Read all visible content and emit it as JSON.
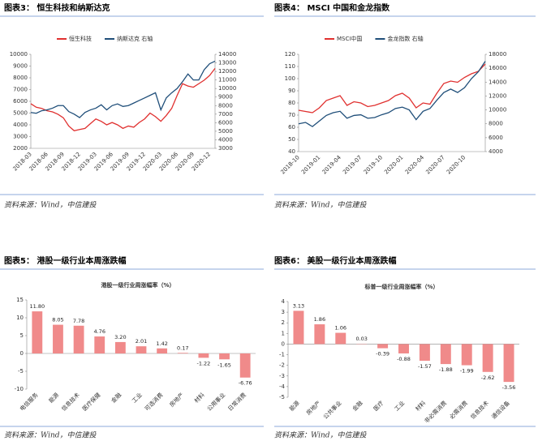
{
  "chart_data": [
    {
      "type": "line",
      "title": "图表3： 恒生科技和纳斯达克",
      "source": "资料来源：Wind，中信建投",
      "categories": [
        "2018-03",
        null,
        null,
        "2018-06",
        null,
        null,
        "2018-09",
        null,
        null,
        "2018-12",
        null,
        null,
        "2019-03",
        null,
        null,
        "2019-06",
        null,
        null,
        "2019-09",
        null,
        null,
        "2019-12",
        null,
        null,
        "2020-03",
        null,
        null,
        "2020-06",
        null,
        null,
        "2020-09",
        null,
        null,
        "2020-12",
        null
      ],
      "series": [
        {
          "name": "恒生科技",
          "color": "#e0302f",
          "values": [
            5800,
            5500,
            5400,
            5200,
            5100,
            4900,
            4600,
            3900,
            3500,
            3600,
            3700,
            4100,
            4500,
            4300,
            4000,
            4200,
            4000,
            3700,
            3900,
            3800,
            4200,
            4500,
            5000,
            4700,
            4300,
            4800,
            5400,
            6500,
            7500,
            7300,
            7200,
            7500,
            7800,
            8200,
            8800
          ]
        },
        {
          "name": "纳斯达克 右轴",
          "color": "#1f4e79",
          "axis": "y2",
          "values": [
            7200,
            7100,
            7400,
            7500,
            7700,
            8000,
            8000,
            7300,
            7000,
            6600,
            7200,
            7500,
            7700,
            8100,
            7500,
            8000,
            8200,
            7900,
            8000,
            8300,
            8600,
            8900,
            9200,
            9500,
            7500,
            8900,
            9500,
            10000,
            10800,
            11700,
            11000,
            11000,
            12200,
            12900,
            13200
          ]
        }
      ],
      "ylim": [
        2000,
        10000
      ],
      "yticks": [
        2000,
        3000,
        4000,
        5000,
        6000,
        7000,
        8000,
        9000,
        10000
      ],
      "y2lim": [
        3000,
        14000
      ],
      "y2ticks": [
        3000,
        4000,
        5000,
        6000,
        7000,
        8000,
        9000,
        10000,
        11000,
        12000,
        13000,
        14000
      ]
    },
    {
      "type": "line",
      "title": "图表4： MSCI 中国和金龙指数",
      "source": "资料来源：Wind，中信建投",
      "categories": [
        "2018-10",
        null,
        null,
        "2019-01",
        null,
        null,
        "2019-04",
        null,
        null,
        "2019-07",
        null,
        null,
        "2019-10",
        null,
        null,
        "2020-01",
        null,
        null,
        "2020-04",
        null,
        null,
        "2020-07",
        null,
        null,
        "2020-10",
        null,
        null,
        null
      ],
      "series": [
        {
          "name": "MSCI中国",
          "color": "#e0302f",
          "values": [
            74,
            73,
            72,
            76,
            82,
            84,
            86,
            78,
            81,
            80,
            77,
            78,
            80,
            82,
            86,
            88,
            84,
            76,
            80,
            79,
            88,
            96,
            98,
            97,
            101,
            104,
            106,
            112
          ]
        },
        {
          "name": "金龙指数 右轴",
          "color": "#1f4e79",
          "axis": "y2",
          "values": [
            8000,
            8200,
            7600,
            8400,
            9200,
            9600,
            9800,
            8800,
            9200,
            9300,
            8800,
            8900,
            9300,
            9600,
            10200,
            10400,
            10000,
            8600,
            9800,
            10200,
            11400,
            12500,
            13000,
            12500,
            13200,
            14500,
            15500,
            17000
          ]
        }
      ],
      "ylim": [
        40,
        120
      ],
      "yticks": [
        40,
        50,
        60,
        70,
        80,
        90,
        100,
        110,
        120
      ],
      "y2lim": [
        4000,
        18000
      ],
      "y2ticks": [
        4000,
        6000,
        8000,
        10000,
        12000,
        14000,
        16000,
        18000
      ]
    },
    {
      "type": "bar",
      "title": "图表5： 港股一级行业本周涨跌幅",
      "subtitle": "港股一级行业周涨幅率（%）",
      "source": "资料来源：Wind，中信建投",
      "color": "#f08a8a",
      "categories": [
        "电信服务",
        "能源",
        "信息技术",
        "医疗保健",
        "金融",
        "工业",
        "可选消费",
        "房地产",
        "材料",
        "公用事业",
        "日常消费"
      ],
      "values": [
        11.8,
        8.05,
        7.78,
        4.76,
        3.2,
        2.01,
        1.42,
        0.17,
        -1.22,
        -1.65,
        -6.76
      ],
      "value_labels": [
        "11.80",
        "8.05",
        "7.78",
        "4.76",
        "3.20",
        "2.01",
        "1.42",
        "0.17",
        "-1.22",
        "-1.65",
        "-6.76"
      ],
      "ylim": [
        -10,
        15
      ],
      "yticks": [
        -10,
        -5,
        0,
        5,
        10,
        15
      ]
    },
    {
      "type": "bar",
      "title": "图表6： 美股一级行业本周涨跌幅",
      "subtitle": "标普一级行业周涨幅率（%）",
      "source": "资料来源：Wind，中信建投",
      "color": "#f08a8a",
      "categories": [
        "能源",
        "房地产",
        "公共事业",
        "金融",
        "医疗",
        "工业",
        "材料",
        "非必需消费",
        "必需消费",
        "信息技术",
        "通信设备"
      ],
      "values": [
        3.13,
        1.86,
        1.06,
        0.03,
        -0.39,
        -0.88,
        -1.57,
        -1.88,
        -1.99,
        -2.62,
        -3.56
      ],
      "value_labels": [
        "3.13",
        "1.86",
        "1.06",
        "0.03",
        "-0.39",
        "-0.88",
        "-1.57",
        "-1.88",
        "-1.99",
        "-2.62",
        "-3.56"
      ],
      "ylim": [
        -5,
        4
      ],
      "yticks": [
        -5,
        -4,
        -3,
        -2,
        -1,
        0,
        1,
        2,
        3,
        4
      ]
    }
  ]
}
